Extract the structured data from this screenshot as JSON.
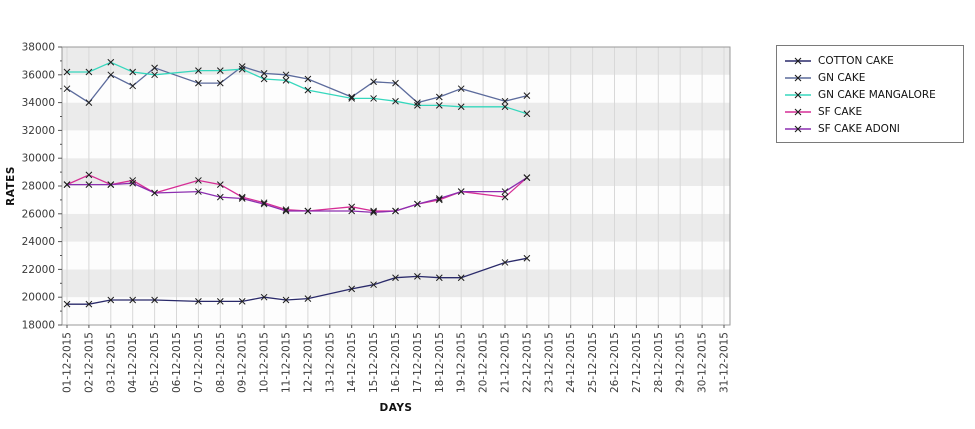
{
  "axis_titles": {
    "x": "DAYS",
    "y": "RATES"
  },
  "chart_data": {
    "type": "line",
    "title": "",
    "xlabel": "DAYS",
    "ylabel": "RATES",
    "ylim": [
      18000,
      38000
    ],
    "y_tick_step": 2000,
    "y_minor_tick_step": 1000,
    "grid": "on",
    "legend_position": "top-right-outside",
    "x_categories": [
      "01-12-2015",
      "02-12-2015",
      "03-12-2015",
      "04-12-2015",
      "05-12-2015",
      "06-12-2015",
      "07-12-2015",
      "08-12-2015",
      "09-12-2015",
      "10-12-2015",
      "11-12-2015",
      "12-12-2015",
      "13-12-2015",
      "14-12-2015",
      "15-12-2015",
      "16-12-2015",
      "17-12-2015",
      "18-12-2015",
      "19-12-2015",
      "20-12-2015",
      "21-12-2015",
      "22-12-2015",
      "23-12-2015",
      "24-12-2015",
      "25-12-2015",
      "26-12-2015",
      "27-12-2015",
      "28-12-2015",
      "29-12-2015",
      "30-12-2015",
      "31-12-2015"
    ],
    "data_days": [
      1,
      2,
      3,
      4,
      5,
      7,
      8,
      9,
      10,
      11,
      12,
      14,
      15,
      16,
      17,
      18,
      19,
      21,
      22
    ],
    "series": [
      {
        "name": "COTTON CAKE",
        "color": "#2a2a6a",
        "values": [
          19500,
          19500,
          19800,
          19800,
          19800,
          19700,
          19700,
          19700,
          20000,
          19800,
          19900,
          20600,
          20900,
          21400,
          21500,
          21400,
          21400,
          22500,
          22800
        ]
      },
      {
        "name": "GN CAKE",
        "color": "#5c6b9c",
        "values": [
          35000,
          34000,
          36000,
          35200,
          36500,
          35400,
          35400,
          36600,
          36100,
          36000,
          35700,
          34400,
          35500,
          35400,
          34000,
          34400,
          35000,
          34100,
          34500
        ]
      },
      {
        "name": "GN CAKE MANGALORE",
        "color": "#36d7bd",
        "values": [
          36200,
          36200,
          36900,
          36200,
          36000,
          36300,
          36300,
          36400,
          35700,
          35600,
          34900,
          34300,
          34300,
          34100,
          33800,
          33800,
          33700,
          33700,
          33200
        ]
      },
      {
        "name": "SF CAKE",
        "color": "#d62e96",
        "values": [
          28100,
          28800,
          28100,
          28400,
          27500,
          28400,
          28100,
          27200,
          26800,
          26300,
          26200,
          26500,
          26200,
          26200,
          26700,
          27000,
          27600,
          27200,
          28600
        ]
      },
      {
        "name": "SF CAKE ADONI",
        "color": "#8c2fb0",
        "values": [
          28100,
          28100,
          28100,
          28200,
          27500,
          27600,
          27200,
          27100,
          26700,
          26200,
          26200,
          26200,
          26100,
          26200,
          26700,
          27100,
          27600,
          27600,
          28600
        ]
      }
    ],
    "style": {
      "band_color": "#ebebeb",
      "band_alt_color": "#fdfdfd",
      "vline_color": "#d8d8d8",
      "border_color": "#999999",
      "tick_color": "#555555",
      "tick_label_color": "#3a3a3a",
      "marker_color": "#1e1e1e"
    }
  }
}
